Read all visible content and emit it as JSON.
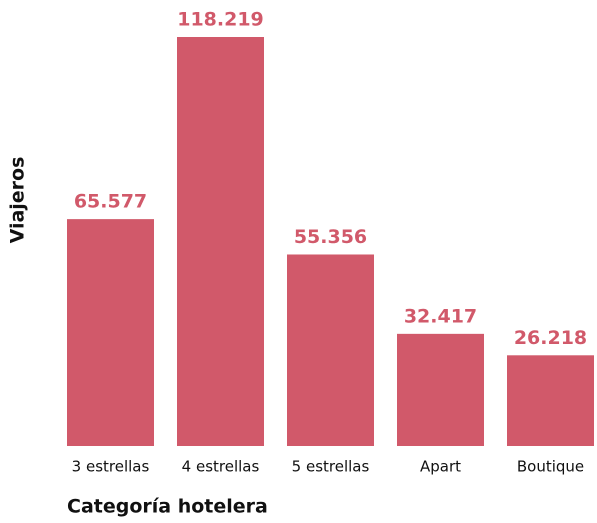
{
  "chart_data": {
    "type": "bar",
    "y_label": "Viajeros",
    "x_label": "Categoría hotelera",
    "categories": [
      "3 estrellas",
      "4 estrellas",
      "5 estrellas",
      "Apart",
      "Boutique"
    ],
    "values": [
      65577,
      118219,
      55356,
      32417,
      26218
    ],
    "value_labels": [
      "65.577",
      "118.219",
      "55.356",
      "32.417",
      "26.218"
    ],
    "color": "#d1596a"
  }
}
